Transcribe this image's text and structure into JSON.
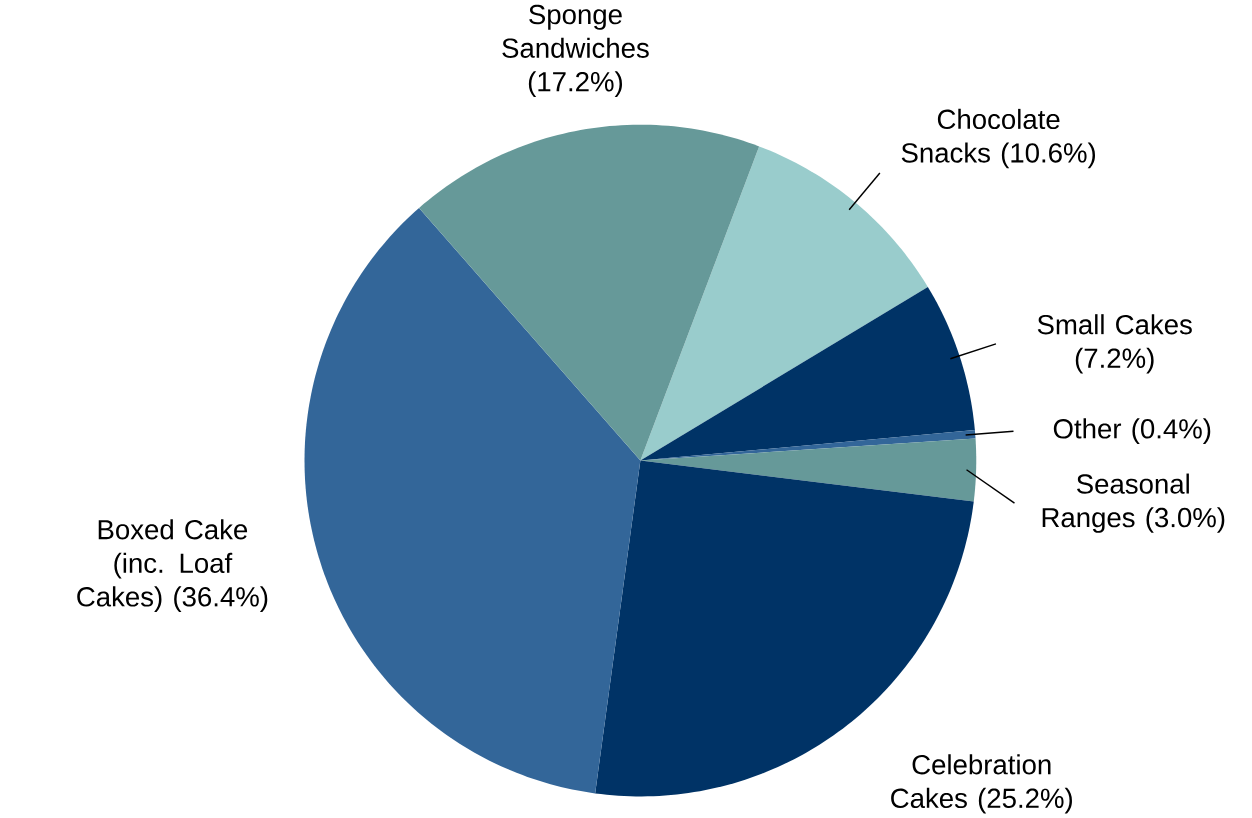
{
  "chart_data": {
    "type": "pie",
    "categories": [
      "Chocolate Snacks",
      "Small Cakes",
      "Other",
      "Seasonal Ranges",
      "Celebration Cakes",
      "Boxed Cake (inc. Loaf Cakes)",
      "Sponge Sandwiches"
    ],
    "values": [
      10.6,
      7.2,
      0.4,
      3.0,
      25.2,
      36.4,
      17.2
    ],
    "value_labels": [
      "(10.6%)",
      "(7.2%)",
      "(0.4%)",
      "(3.0%)",
      "(25.2%)",
      "(36.4%)",
      "(17.2%)"
    ],
    "colors": [
      "#99cccc",
      "#003366",
      "#336699",
      "#669999",
      "#003366",
      "#336699",
      "#669999"
    ]
  }
}
